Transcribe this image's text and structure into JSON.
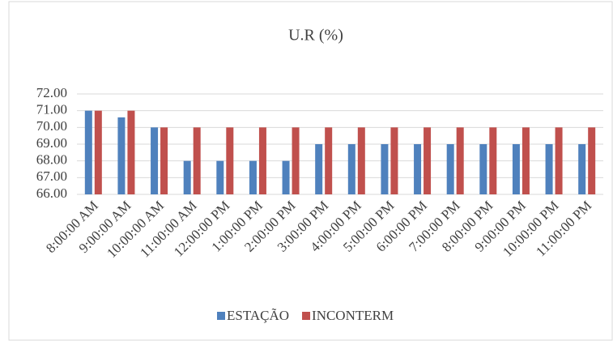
{
  "chart_data": {
    "type": "bar",
    "title": "U.R (%)",
    "categories": [
      "8:00:00 AM",
      "9:00:00 AM",
      "10:00:00 AM",
      "11:00:00 AM",
      "12:00:00 PM",
      "1:00:00 PM",
      "2:00:00 PM",
      "3:00:00 PM",
      "4:00:00 PM",
      "5:00:00 PM",
      "6:00:00 PM",
      "7:00:00 PM",
      "8:00:00 PM",
      "9:00:00 PM",
      "10:00:00 PM",
      "11:00:00 PM"
    ],
    "series": [
      {
        "name": "ESTAÇÃO",
        "color": "#4f81bd",
        "values": [
          71,
          70.6,
          70,
          68,
          68,
          68,
          68,
          69,
          69,
          69,
          69,
          69,
          69,
          69,
          69,
          69
        ]
      },
      {
        "name": "INCONTERM",
        "color": "#c0504d",
        "values": [
          71,
          71,
          70,
          70,
          70,
          70,
          70,
          70,
          70,
          70,
          70,
          70,
          70,
          70,
          70,
          70
        ]
      }
    ],
    "ylim": [
      66,
      72
    ],
    "yticks": [
      {
        "value": 66,
        "label": "66.00"
      },
      {
        "value": 67,
        "label": "67.00"
      },
      {
        "value": 68,
        "label": "68.00"
      },
      {
        "value": 69,
        "label": "69.00"
      },
      {
        "value": 70,
        "label": "70.00"
      },
      {
        "value": 71,
        "label": "71.00"
      },
      {
        "value": 72,
        "label": "72.00"
      }
    ],
    "grid": true,
    "legend": "bottom"
  }
}
